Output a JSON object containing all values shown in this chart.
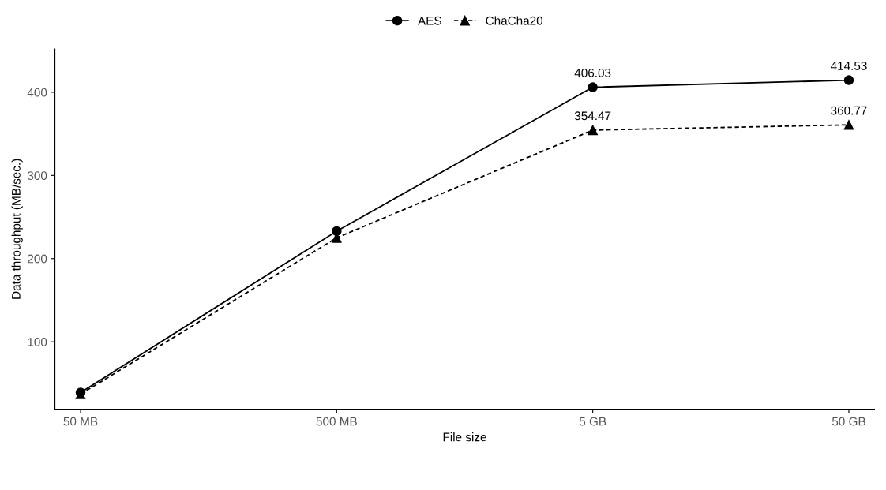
{
  "chart_data": {
    "type": "line",
    "xlabel": "File size",
    "ylabel": "Data throughput (MB/sec.)",
    "categories": [
      "50 MB",
      "500 MB",
      "5 GB",
      "50 GB"
    ],
    "series": [
      {
        "name": "AES",
        "color": "#000000",
        "marker": "circle",
        "line_style": "solid",
        "values": [
          39,
          233,
          406.03,
          414.53
        ],
        "value_labels": [
          null,
          null,
          "406.03",
          "414.53"
        ]
      },
      {
        "name": "ChaCha20",
        "color": "#000000",
        "marker": "triangle",
        "line_style": "dashed",
        "values": [
          37,
          225,
          354.47,
          360.77
        ],
        "value_labels": [
          null,
          null,
          "354.47",
          "360.77"
        ]
      }
    ],
    "ylim": [
      19,
      452
    ],
    "yticks": [
      100,
      200,
      300,
      400
    ],
    "grid": false,
    "legend": "top"
  }
}
